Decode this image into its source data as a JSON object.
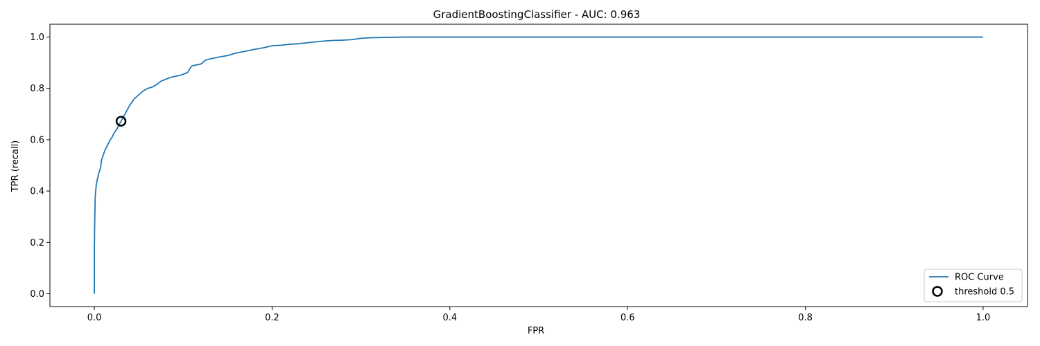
{
  "chart_data": {
    "type": "line",
    "title": "GradientBoostingClassifier - AUC: 0.963",
    "xlabel": "FPR",
    "ylabel": "TPR (recall)",
    "xlim": [
      -0.05,
      1.05
    ],
    "ylim": [
      -0.05,
      1.05
    ],
    "xticks": [
      0.0,
      0.2,
      0.4,
      0.6,
      0.8,
      1.0
    ],
    "xtick_labels": [
      "0.0",
      "0.2",
      "0.4",
      "0.6",
      "0.8",
      "1.0"
    ],
    "yticks": [
      0.0,
      0.2,
      0.4,
      0.6,
      0.8,
      1.0
    ],
    "ytick_labels": [
      "0.0",
      "0.2",
      "0.4",
      "0.6",
      "0.8",
      "1.0"
    ],
    "grid": false,
    "legend_position": "lower-right",
    "series": [
      {
        "name": "ROC Curve",
        "color": "#1f77b4",
        "x": [
          0.0,
          0.0,
          0.0005,
          0.001,
          0.002,
          0.003,
          0.005,
          0.007,
          0.008,
          0.01,
          0.012,
          0.015,
          0.018,
          0.02,
          0.022,
          0.025,
          0.028,
          0.03,
          0.033,
          0.036,
          0.04,
          0.045,
          0.05,
          0.055,
          0.06,
          0.065,
          0.07,
          0.075,
          0.08,
          0.085,
          0.09,
          0.095,
          0.1,
          0.105,
          0.108,
          0.11,
          0.12,
          0.125,
          0.13,
          0.14,
          0.15,
          0.16,
          0.17,
          0.18,
          0.19,
          0.2,
          0.21,
          0.22,
          0.23,
          0.24,
          0.25,
          0.26,
          0.27,
          0.28,
          0.29,
          0.3,
          0.31,
          0.33,
          0.35,
          0.4,
          0.5,
          0.7,
          1.0
        ],
        "y": [
          0.0,
          0.17,
          0.3,
          0.38,
          0.42,
          0.44,
          0.47,
          0.49,
          0.52,
          0.54,
          0.56,
          0.58,
          0.6,
          0.61,
          0.625,
          0.64,
          0.66,
          0.672,
          0.69,
          0.71,
          0.735,
          0.76,
          0.775,
          0.79,
          0.8,
          0.805,
          0.815,
          0.828,
          0.835,
          0.842,
          0.846,
          0.85,
          0.855,
          0.862,
          0.88,
          0.888,
          0.895,
          0.91,
          0.915,
          0.922,
          0.928,
          0.938,
          0.945,
          0.952,
          0.958,
          0.966,
          0.968,
          0.972,
          0.974,
          0.978,
          0.982,
          0.985,
          0.987,
          0.988,
          0.99,
          0.995,
          0.997,
          0.999,
          1.0,
          1.0,
          1.0,
          1.0,
          1.0
        ]
      },
      {
        "name": "threshold 0.5",
        "marker": "circle-open",
        "color": "#000000",
        "x": [
          0.03
        ],
        "y": [
          0.672
        ]
      }
    ]
  }
}
